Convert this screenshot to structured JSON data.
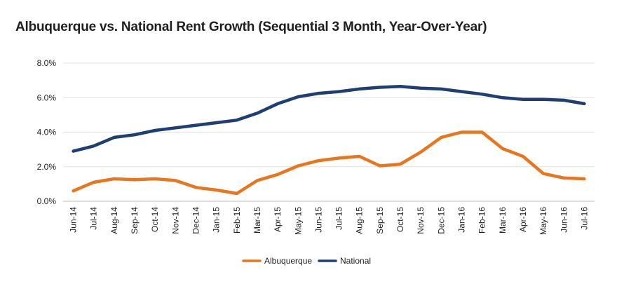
{
  "chart_data": {
    "type": "line",
    "title": "Albuquerque vs. National Rent Growth (Sequential 3 Month, Year-Over-Year)",
    "xlabel": "",
    "ylabel": "",
    "categories": [
      "Jun-14",
      "Jul-14",
      "Aug-14",
      "Sep-14",
      "Oct-14",
      "Nov-14",
      "Dec-14",
      "Jan-15",
      "Feb-15",
      "Mar-15",
      "Apr-15",
      "May-15",
      "Jun-15",
      "Jul-15",
      "Aug-15",
      "Sep-15",
      "Oct-15",
      "Nov-15",
      "Dec-15",
      "Jan-16",
      "Feb-16",
      "Mar-16",
      "Apr-16",
      "May-16",
      "Jun-16",
      "Jul-16"
    ],
    "y_ticks": [
      "0.0%",
      "2.0%",
      "4.0%",
      "6.0%",
      "8.0%"
    ],
    "ylim": [
      0,
      8
    ],
    "grid": true,
    "legend_position": "bottom",
    "series": [
      {
        "name": "Albuquerque",
        "color": "#e8761e",
        "values": [
          0.6,
          1.1,
          1.3,
          1.25,
          1.3,
          1.2,
          0.8,
          0.65,
          0.45,
          1.2,
          1.55,
          2.05,
          2.35,
          2.5,
          2.6,
          2.05,
          2.15,
          2.85,
          3.7,
          4.0,
          4.0,
          3.05,
          2.6,
          1.6,
          1.35,
          1.3
        ]
      },
      {
        "name": "National",
        "color": "#1f3f73",
        "values": [
          2.9,
          3.2,
          3.7,
          3.85,
          4.1,
          4.25,
          4.4,
          4.55,
          4.7,
          5.1,
          5.65,
          6.05,
          6.25,
          6.35,
          6.5,
          6.6,
          6.65,
          6.55,
          6.5,
          6.35,
          6.2,
          6.0,
          5.9,
          5.9,
          5.85,
          5.65
        ]
      }
    ]
  }
}
